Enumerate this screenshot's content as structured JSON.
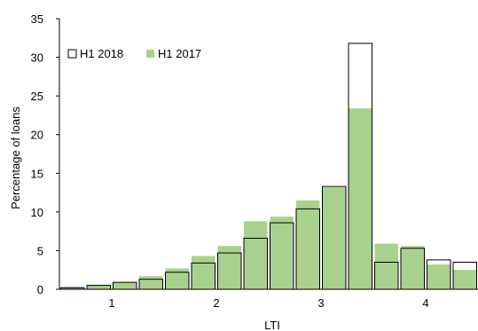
{
  "chart_data": {
    "type": "bar",
    "title": "",
    "xlabel": "LTI",
    "ylabel": "Percentage of loans",
    "ylim": [
      0,
      35
    ],
    "yticks": [
      0,
      5,
      10,
      15,
      20,
      25,
      30,
      35
    ],
    "grid": false,
    "legend_position": "top-left",
    "x_tick_labels": [
      {
        "label": "1",
        "x": 1.0
      },
      {
        "label": "2",
        "x": 2.0
      },
      {
        "label": "3",
        "x": 3.0
      },
      {
        "label": "4",
        "x": 4.0
      }
    ],
    "bin_width": 0.25,
    "bin_centers": [
      0.625,
      0.875,
      1.125,
      1.375,
      1.625,
      1.875,
      2.125,
      2.375,
      2.625,
      2.875,
      3.125,
      3.375,
      3.625,
      3.875,
      4.125,
      4.375
    ],
    "series": [
      {
        "name": "H1 2018",
        "style": "outline",
        "color": "#000000",
        "values": [
          0.2,
          0.5,
          0.9,
          1.3,
          2.2,
          3.4,
          4.7,
          6.6,
          8.6,
          10.4,
          13.3,
          31.8,
          3.5,
          5.3,
          3.8,
          3.5
        ]
      },
      {
        "name": "H1 2017",
        "style": "fill",
        "color": "#a9d18e",
        "values": [
          0.3,
          0.6,
          0.9,
          1.7,
          2.7,
          4.3,
          5.6,
          8.8,
          9.4,
          11.5,
          13.2,
          23.4,
          5.9,
          5.6,
          3.2,
          2.5
        ]
      }
    ]
  }
}
